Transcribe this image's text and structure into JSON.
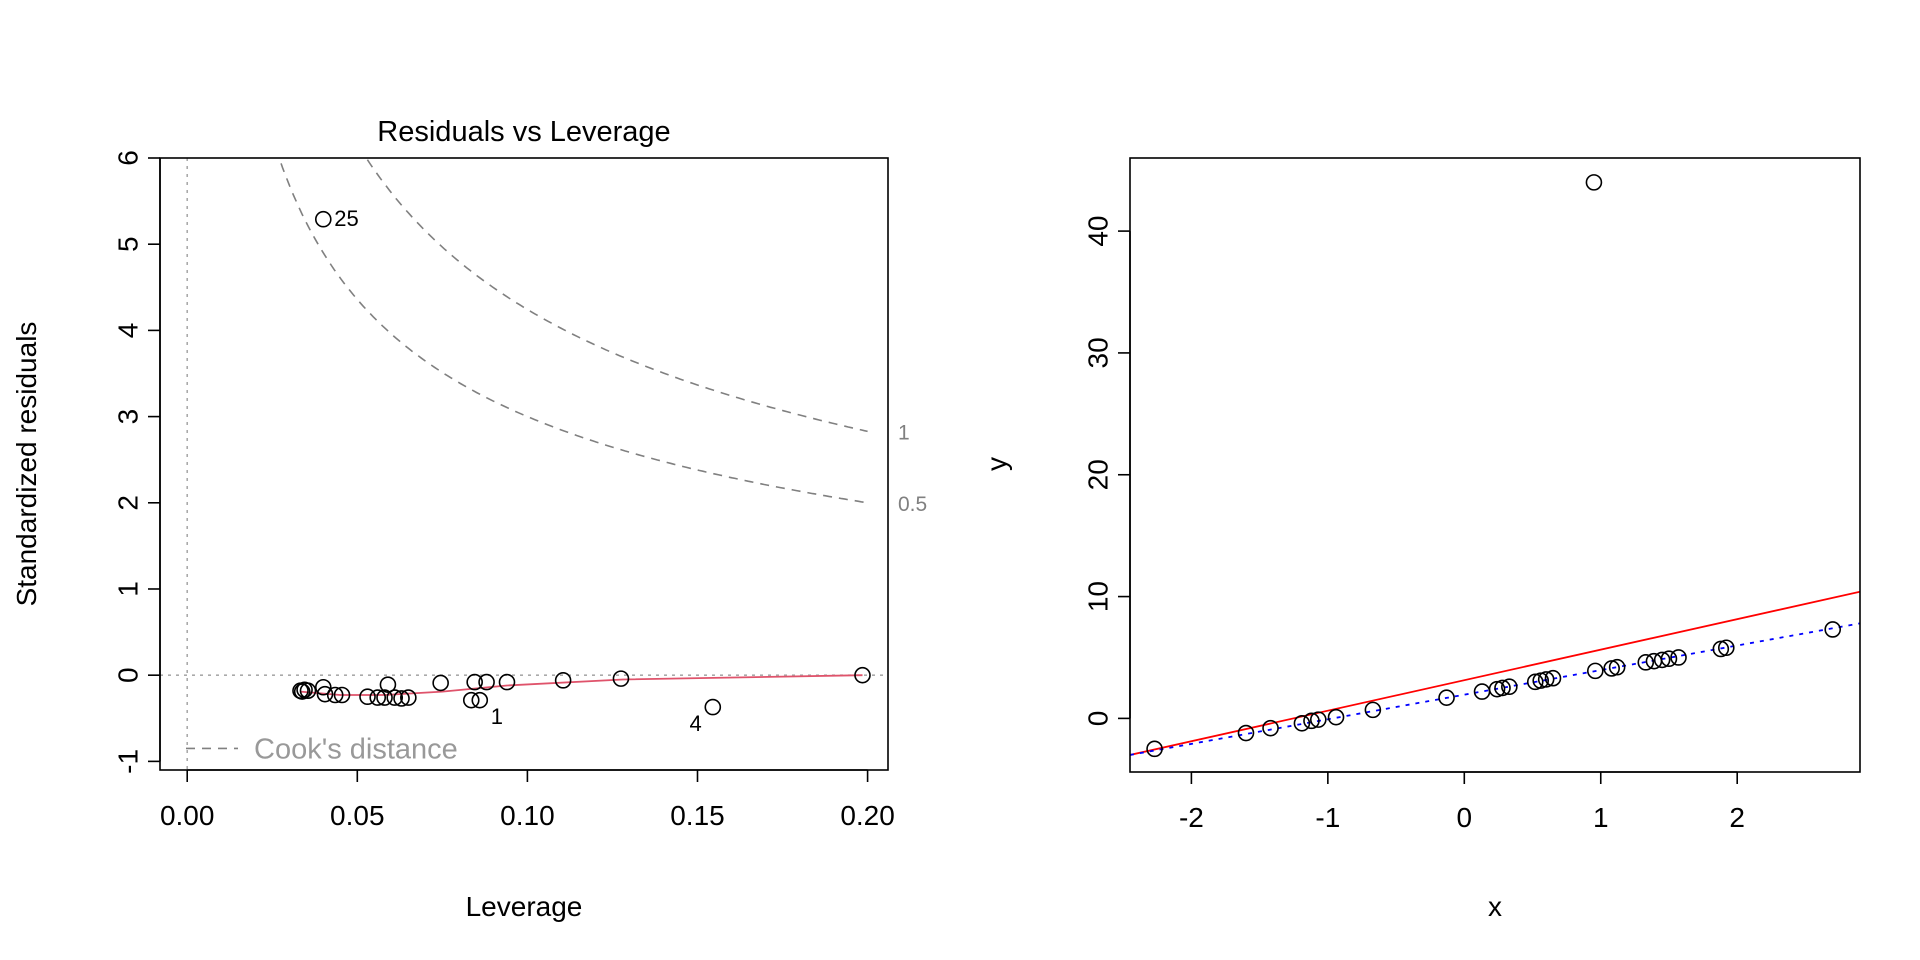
{
  "chart_data": [
    {
      "type": "scatter",
      "title": "Residuals vs Leverage",
      "xlabel": "Leverage",
      "ylabel": "Standardized residuals",
      "xlim": [
        -0.008,
        0.206
      ],
      "ylim": [
        -1.1,
        6.0
      ],
      "xticks": [
        0.0,
        0.05,
        0.1,
        0.15,
        0.2
      ],
      "xtick_labels": [
        "0.00",
        "0.05",
        "0.10",
        "0.15",
        "0.20"
      ],
      "yticks": [
        -1,
        0,
        1,
        2,
        3,
        4,
        5,
        6
      ],
      "ytick_labels": [
        "-1",
        "0",
        "1",
        "2",
        "3",
        "4",
        "5",
        "6"
      ],
      "points": [
        {
          "x": 0.0333,
          "y": -0.18
        },
        {
          "x": 0.0338,
          "y": -0.19
        },
        {
          "x": 0.0345,
          "y": -0.17
        },
        {
          "x": 0.0355,
          "y": -0.18
        },
        {
          "x": 0.04,
          "y": -0.14
        },
        {
          "x": 0.0405,
          "y": -0.22
        },
        {
          "x": 0.0435,
          "y": -0.23
        },
        {
          "x": 0.0455,
          "y": -0.23
        },
        {
          "x": 0.053,
          "y": -0.25
        },
        {
          "x": 0.056,
          "y": -0.26
        },
        {
          "x": 0.058,
          "y": -0.26
        },
        {
          "x": 0.059,
          "y": -0.11
        },
        {
          "x": 0.061,
          "y": -0.26
        },
        {
          "x": 0.063,
          "y": -0.27
        },
        {
          "x": 0.065,
          "y": -0.26
        },
        {
          "x": 0.0745,
          "y": -0.09
        },
        {
          "x": 0.0835,
          "y": -0.29
        },
        {
          "x": 0.0845,
          "y": -0.08
        },
        {
          "x": 0.086,
          "y": -0.29
        },
        {
          "x": 0.088,
          "y": -0.08
        },
        {
          "x": 0.094,
          "y": -0.08
        },
        {
          "x": 0.1105,
          "y": -0.06
        },
        {
          "x": 0.1275,
          "y": -0.04
        },
        {
          "x": 0.1545,
          "y": -0.37
        },
        {
          "x": 0.1985,
          "y": 0.0
        },
        {
          "x": 0.04,
          "y": 5.29
        }
      ],
      "point_labels": [
        {
          "text": "25",
          "x": 0.04,
          "y": 5.29,
          "side": "right"
        },
        {
          "text": "1",
          "x": 0.086,
          "y": -0.29,
          "side": "below-right"
        },
        {
          "text": "4",
          "x": 0.1545,
          "y": -0.37,
          "side": "below-left"
        }
      ],
      "smooth_line": [
        {
          "x": 0.0333,
          "y": -0.19
        },
        {
          "x": 0.045,
          "y": -0.23
        },
        {
          "x": 0.058,
          "y": -0.23
        },
        {
          "x": 0.075,
          "y": -0.19
        },
        {
          "x": 0.094,
          "y": -0.12
        },
        {
          "x": 0.128,
          "y": -0.05
        },
        {
          "x": 0.1985,
          "y": 0.0
        }
      ],
      "cooks_contours": [
        {
          "label": "1",
          "level": 1
        },
        {
          "label": "0.5",
          "level": 0.5
        }
      ],
      "legend": {
        "position": "bottom-left",
        "label": "Cook's distance"
      },
      "colors": {
        "points": "#000000",
        "smooth": "#DF536B",
        "cook": "#808080",
        "reference": "#aaaaaa"
      }
    },
    {
      "type": "scatter",
      "xlabel": "x",
      "ylabel": "y",
      "xlim": [
        -2.45,
        2.9
      ],
      "ylim": [
        -4.4,
        46.0
      ],
      "xticks": [
        -2,
        -1,
        0,
        1,
        2
      ],
      "xtick_labels": [
        "-2",
        "-1",
        "0",
        "1",
        "2"
      ],
      "yticks": [
        0,
        10,
        20,
        30,
        40
      ],
      "ytick_labels": [
        "0",
        "10",
        "20",
        "30",
        "40"
      ],
      "points": [
        {
          "x": -2.27,
          "y": -2.5
        },
        {
          "x": -1.6,
          "y": -1.2
        },
        {
          "x": -1.42,
          "y": -0.8
        },
        {
          "x": -1.19,
          "y": -0.4
        },
        {
          "x": -1.12,
          "y": -0.2
        },
        {
          "x": -1.07,
          "y": -0.1
        },
        {
          "x": -0.94,
          "y": 0.1
        },
        {
          "x": -0.67,
          "y": 0.7
        },
        {
          "x": -0.13,
          "y": 1.7
        },
        {
          "x": 0.13,
          "y": 2.2
        },
        {
          "x": 0.24,
          "y": 2.4
        },
        {
          "x": 0.28,
          "y": 2.5
        },
        {
          "x": 0.33,
          "y": 2.6
        },
        {
          "x": 0.52,
          "y": 3.0
        },
        {
          "x": 0.56,
          "y": 3.1
        },
        {
          "x": 0.6,
          "y": 3.2
        },
        {
          "x": 0.65,
          "y": 3.3
        },
        {
          "x": 0.96,
          "y": 3.9
        },
        {
          "x": 1.08,
          "y": 4.1
        },
        {
          "x": 1.12,
          "y": 4.2
        },
        {
          "x": 1.33,
          "y": 4.6
        },
        {
          "x": 1.39,
          "y": 4.7
        },
        {
          "x": 1.45,
          "y": 4.8
        },
        {
          "x": 1.5,
          "y": 4.9
        },
        {
          "x": 1.57,
          "y": 5.0
        },
        {
          "x": 1.88,
          "y": 5.7
        },
        {
          "x": 1.92,
          "y": 5.8
        },
        {
          "x": 2.7,
          "y": 7.3
        },
        {
          "x": 0.95,
          "y": 44.0
        }
      ],
      "lines": [
        {
          "name": "",
          "color": "#ff0000",
          "style": "solid",
          "from": [
            -2.45,
            -3.0
          ],
          "to": [
            2.9,
            10.4
          ]
        },
        {
          "name": "",
          "color": "#0000ff",
          "style": "dotted",
          "from": [
            -2.45,
            -3.0
          ],
          "to": [
            2.9,
            7.8
          ]
        }
      ],
      "colors": {
        "points": "#000000"
      }
    }
  ]
}
